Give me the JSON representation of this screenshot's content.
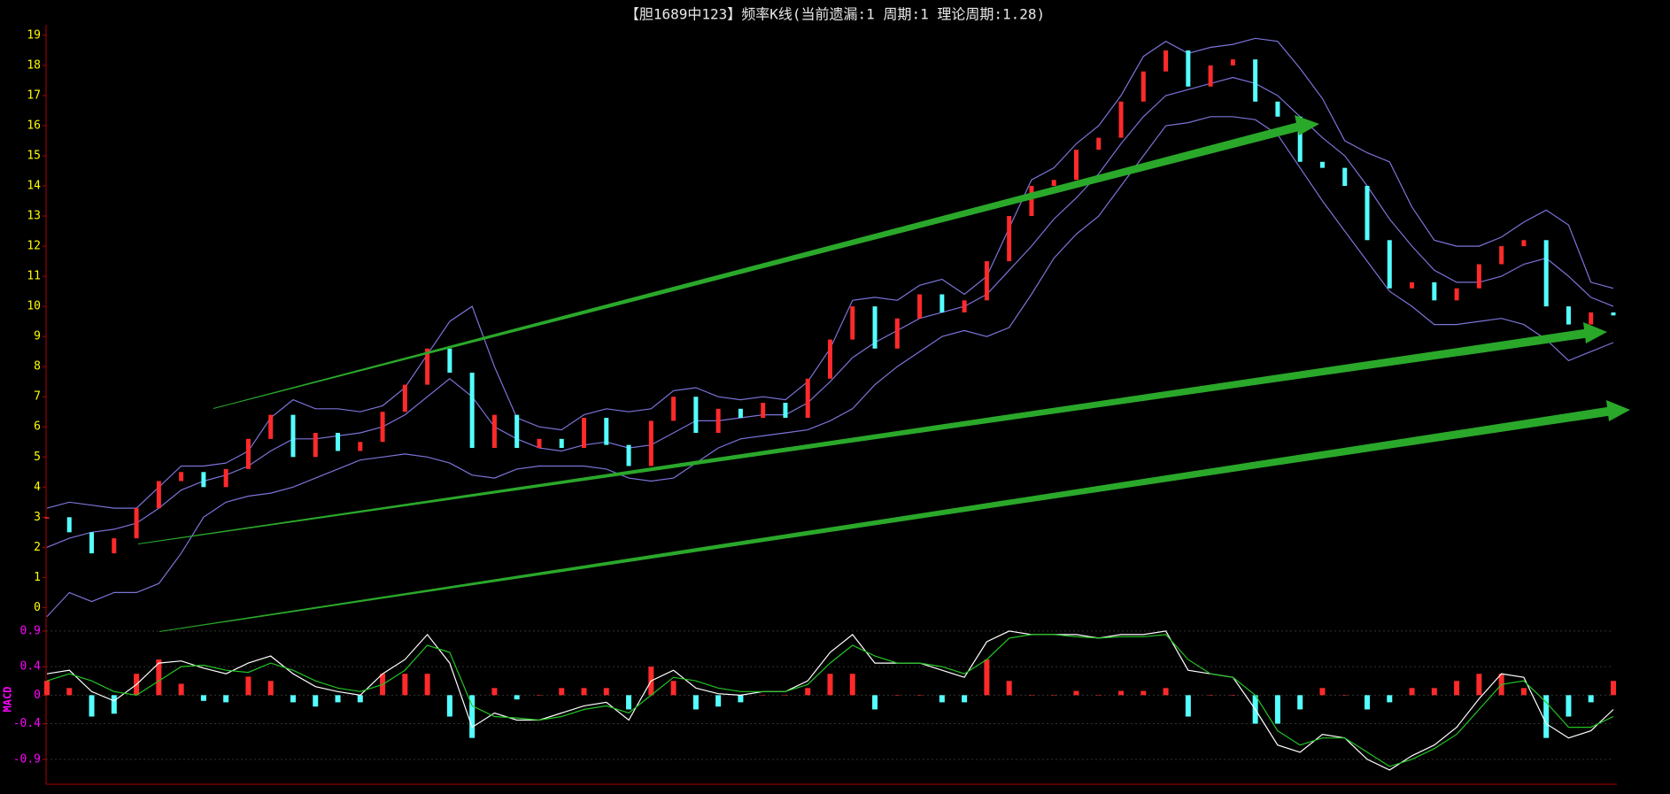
{
  "chart_data": [
    {
      "type": "candlestick",
      "title": "【胆1689中123】频率K线(当前遗漏:1 周期:1 理论周期:1.28)",
      "values": [
        3,
        2.5,
        1.8,
        2.3,
        3.3,
        4.2,
        4.5,
        4.0,
        4.6,
        5.6,
        6.4,
        5.0,
        5.8,
        5.2,
        5.5,
        6.5,
        7.4,
        8.6,
        7.8,
        5.3,
        6.4,
        5.3,
        5.6,
        5.3,
        6.3,
        5.4,
        4.7,
        6.2,
        7.0,
        5.8,
        6.6,
        6.3,
        6.8,
        6.3,
        7.6,
        8.9,
        10.0,
        8.6,
        9.6,
        10.4,
        9.8,
        10.2,
        11.5,
        13.0,
        14.0,
        14.2,
        15.2,
        15.6,
        16.8,
        17.8,
        18.5,
        17.3,
        18.0,
        18.2,
        16.8,
        16.3,
        14.8,
        14.6,
        14.0,
        12.2,
        10.6,
        10.8,
        10.2,
        10.6,
        11.4,
        12.0,
        12.2,
        10.0,
        9.4,
        9.8,
        9.7
      ],
      "up_color": "#ff2a2a",
      "down_color": "#54ffff",
      "series": [
        {
          "color": "#7b74d8",
          "values": [
            3.3,
            3.5,
            3.4,
            3.3,
            3.3,
            4.0,
            4.7,
            4.7,
            4.8,
            5.2,
            6.3,
            6.9,
            6.6,
            6.6,
            6.5,
            6.7,
            7.3,
            8.4,
            9.5,
            10.0,
            8.0,
            6.3,
            6.0,
            5.9,
            6.4,
            6.6,
            6.5,
            6.6,
            7.2,
            7.3,
            7.0,
            6.9,
            7.0,
            6.9,
            7.5,
            8.6,
            10.2,
            10.3,
            10.2,
            10.7,
            10.9,
            10.4,
            11.0,
            12.6,
            14.2,
            14.6,
            15.4,
            16.0,
            17.0,
            18.3,
            18.8,
            18.4,
            18.6,
            18.7,
            18.9,
            18.8,
            17.9,
            16.9,
            15.5,
            15.1,
            14.8,
            13.3,
            12.2,
            12.0,
            12.0,
            12.3,
            12.8,
            13.2,
            12.7,
            10.8,
            10.6
          ]
        },
        {
          "color": "#7b74d8",
          "values": [
            2.0,
            2.3,
            2.5,
            2.6,
            2.8,
            3.3,
            3.9,
            4.2,
            4.4,
            4.7,
            5.2,
            5.6,
            5.6,
            5.7,
            5.8,
            6.0,
            6.4,
            7.0,
            7.6,
            7.0,
            6.0,
            5.6,
            5.3,
            5.2,
            5.4,
            5.5,
            5.3,
            5.4,
            5.8,
            6.2,
            6.2,
            6.3,
            6.4,
            6.4,
            6.8,
            7.5,
            8.3,
            8.8,
            9.2,
            9.6,
            9.8,
            10.0,
            10.4,
            11.2,
            12.0,
            12.9,
            13.6,
            14.4,
            15.4,
            16.3,
            17.0,
            17.2,
            17.4,
            17.6,
            17.4,
            17.0,
            16.3,
            15.6,
            15.0,
            14.0,
            12.9,
            12.0,
            11.2,
            10.8,
            10.8,
            11.0,
            11.4,
            11.6,
            11.0,
            10.3,
            10.0
          ]
        },
        {
          "color": "#7b74d8",
          "values": [
            -0.3,
            0.5,
            0.2,
            0.5,
            0.5,
            0.8,
            1.8,
            3.0,
            3.5,
            3.7,
            3.8,
            4.0,
            4.3,
            4.6,
            4.9,
            5.0,
            5.1,
            5.0,
            4.8,
            4.4,
            4.3,
            4.6,
            4.7,
            4.7,
            4.7,
            4.6,
            4.3,
            4.2,
            4.3,
            4.8,
            5.3,
            5.6,
            5.7,
            5.8,
            5.9,
            6.2,
            6.6,
            7.4,
            8.0,
            8.5,
            9.0,
            9.2,
            9.0,
            9.3,
            10.4,
            11.6,
            12.4,
            13.0,
            14.0,
            15.0,
            16.0,
            16.1,
            16.3,
            16.3,
            16.2,
            15.7,
            14.6,
            13.5,
            12.5,
            11.5,
            10.5,
            10.0,
            9.4,
            9.4,
            9.5,
            9.6,
            9.4,
            8.9,
            8.2,
            8.5,
            8.8
          ]
        }
      ],
      "ylim": [
        -0.4,
        19.35
      ],
      "yticks": [
        0,
        1,
        2,
        3,
        4,
        5,
        6,
        7,
        8,
        9,
        10,
        11,
        12,
        13,
        14,
        15,
        16,
        17,
        18,
        19
      ],
      "tick_color": "#ffff00"
    },
    {
      "type": "macd",
      "ylabel": "MACD",
      "bar_values": [
        0.2,
        0.1,
        -0.3,
        -0.26,
        0.3,
        0.5,
        0.16,
        -0.08,
        -0.1,
        0.26,
        0.2,
        -0.1,
        -0.16,
        -0.1,
        -0.1,
        0.3,
        0.3,
        0.3,
        -0.3,
        -0.6,
        0.1,
        -0.06,
        0,
        0.1,
        0.1,
        0.1,
        -0.2,
        0.4,
        0.2,
        -0.2,
        -0.16,
        -0.1,
        0,
        0,
        0.1,
        0.3,
        0.3,
        -0.2,
        0,
        0,
        -0.1,
        -0.1,
        0.5,
        0.2,
        0,
        0,
        0.06,
        0,
        0.06,
        0.06,
        0.1,
        -0.3,
        0,
        0,
        -0.4,
        -0.4,
        -0.2,
        0.1,
        0,
        -0.2,
        -0.1,
        0.1,
        0.1,
        0.2,
        0.3,
        0.3,
        0.1,
        -0.6,
        -0.3,
        -0.1,
        0.2
      ],
      "up_color": "#ff2a2a",
      "down_color": "#54ffff",
      "series": [
        {
          "color": "#ffffff",
          "values": [
            0.3,
            0.35,
            0.05,
            -0.08,
            0.15,
            0.45,
            0.48,
            0.38,
            0.3,
            0.45,
            0.55,
            0.3,
            0.12,
            0.05,
            0.0,
            0.3,
            0.5,
            0.85,
            0.45,
            -0.45,
            -0.25,
            -0.35,
            -0.35,
            -0.25,
            -0.15,
            -0.1,
            -0.35,
            0.2,
            0.35,
            0.1,
            0.02,
            0.0,
            0.05,
            0.05,
            0.2,
            0.6,
            0.85,
            0.45,
            0.45,
            0.45,
            0.35,
            0.25,
            0.75,
            0.9,
            0.85,
            0.85,
            0.85,
            0.8,
            0.85,
            0.85,
            0.9,
            0.35,
            0.3,
            0.25,
            -0.2,
            -0.7,
            -0.8,
            -0.55,
            -0.6,
            -0.9,
            -1.05,
            -0.85,
            -0.7,
            -0.45,
            -0.05,
            0.3,
            0.25,
            -0.4,
            -0.6,
            -0.5,
            -0.2
          ]
        },
        {
          "color": "#22c522",
          "values": [
            0.2,
            0.3,
            0.2,
            0.05,
            0.0,
            0.2,
            0.4,
            0.42,
            0.35,
            0.32,
            0.45,
            0.35,
            0.2,
            0.1,
            0.05,
            0.15,
            0.35,
            0.7,
            0.6,
            -0.15,
            -0.3,
            -0.32,
            -0.35,
            -0.3,
            -0.2,
            -0.15,
            -0.25,
            0.0,
            0.25,
            0.2,
            0.1,
            0.05,
            0.05,
            0.05,
            0.15,
            0.45,
            0.7,
            0.55,
            0.45,
            0.45,
            0.4,
            0.3,
            0.5,
            0.8,
            0.85,
            0.85,
            0.82,
            0.8,
            0.82,
            0.82,
            0.85,
            0.5,
            0.3,
            0.25,
            0.0,
            -0.5,
            -0.7,
            -0.6,
            -0.6,
            -0.8,
            -1.0,
            -0.9,
            -0.75,
            -0.55,
            -0.2,
            0.15,
            0.2,
            -0.1,
            -0.45,
            -0.45,
            -0.3
          ]
        }
      ],
      "ylim": [
        -1.25,
        1.06
      ],
      "yticks": [
        0.9,
        0.4,
        0,
        -0.4,
        -0.9
      ],
      "grid": true,
      "tick_color": "#ff00ff"
    }
  ]
}
